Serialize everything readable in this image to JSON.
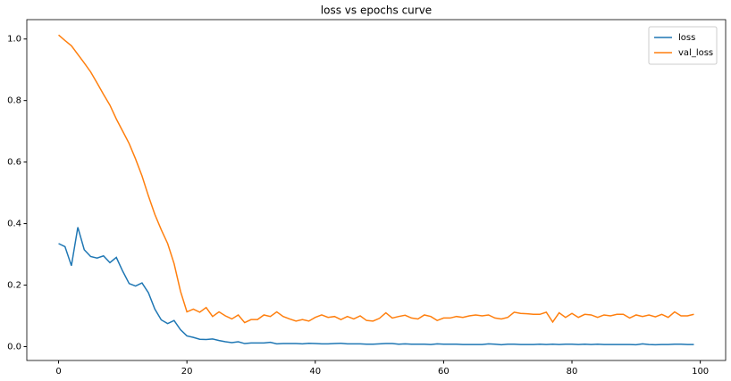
{
  "chart_data": {
    "type": "line",
    "title": "loss vs epochs curve",
    "x": [
      0,
      1,
      2,
      3,
      4,
      5,
      6,
      7,
      8,
      9,
      10,
      11,
      12,
      13,
      14,
      15,
      16,
      17,
      18,
      19,
      20,
      21,
      22,
      23,
      24,
      25,
      26,
      27,
      28,
      29,
      30,
      31,
      32,
      33,
      34,
      35,
      36,
      37,
      38,
      39,
      40,
      41,
      42,
      43,
      44,
      45,
      46,
      47,
      48,
      49,
      50,
      51,
      52,
      53,
      54,
      55,
      56,
      57,
      58,
      59,
      60,
      61,
      62,
      63,
      64,
      65,
      66,
      67,
      68,
      69,
      70,
      71,
      72,
      73,
      74,
      75,
      76,
      77,
      78,
      79,
      80,
      81,
      82,
      83,
      84,
      85,
      86,
      87,
      88,
      89,
      90,
      91,
      92,
      93,
      94,
      95,
      96,
      97,
      98,
      99
    ],
    "series": [
      {
        "name": "loss",
        "color": "#1f77b4",
        "values": [
          0.335,
          0.325,
          0.263,
          0.388,
          0.315,
          0.293,
          0.288,
          0.295,
          0.273,
          0.29,
          0.245,
          0.205,
          0.197,
          0.207,
          0.175,
          0.122,
          0.087,
          0.075,
          0.085,
          0.055,
          0.035,
          0.03,
          0.024,
          0.023,
          0.025,
          0.02,
          0.016,
          0.013,
          0.016,
          0.01,
          0.012,
          0.012,
          0.012,
          0.014,
          0.009,
          0.01,
          0.01,
          0.01,
          0.009,
          0.011,
          0.01,
          0.009,
          0.009,
          0.01,
          0.011,
          0.009,
          0.009,
          0.009,
          0.008,
          0.008,
          0.009,
          0.01,
          0.01,
          0.008,
          0.009,
          0.008,
          0.008,
          0.008,
          0.007,
          0.009,
          0.008,
          0.008,
          0.008,
          0.007,
          0.007,
          0.007,
          0.007,
          0.009,
          0.008,
          0.006,
          0.008,
          0.008,
          0.007,
          0.007,
          0.007,
          0.008,
          0.007,
          0.008,
          0.007,
          0.008,
          0.008,
          0.007,
          0.008,
          0.007,
          0.008,
          0.007,
          0.007,
          0.007,
          0.007,
          0.007,
          0.006,
          0.009,
          0.007,
          0.006,
          0.007,
          0.007,
          0.008,
          0.008,
          0.007,
          0.007
        ]
      },
      {
        "name": "val_loss",
        "color": "#ff7f0e",
        "values": [
          1.013,
          0.995,
          0.978,
          0.95,
          0.922,
          0.893,
          0.857,
          0.82,
          0.785,
          0.74,
          0.7,
          0.66,
          0.61,
          0.555,
          0.49,
          0.43,
          0.38,
          0.335,
          0.27,
          0.18,
          0.113,
          0.122,
          0.112,
          0.127,
          0.098,
          0.113,
          0.1,
          0.09,
          0.103,
          0.078,
          0.088,
          0.088,
          0.103,
          0.098,
          0.113,
          0.098,
          0.09,
          0.083,
          0.088,
          0.083,
          0.095,
          0.103,
          0.095,
          0.098,
          0.088,
          0.098,
          0.09,
          0.1,
          0.085,
          0.083,
          0.092,
          0.11,
          0.093,
          0.098,
          0.102,
          0.093,
          0.09,
          0.103,
          0.098,
          0.085,
          0.093,
          0.093,
          0.098,
          0.095,
          0.1,
          0.103,
          0.1,
          0.103,
          0.093,
          0.09,
          0.095,
          0.112,
          0.108,
          0.107,
          0.105,
          0.105,
          0.112,
          0.08,
          0.11,
          0.095,
          0.108,
          0.095,
          0.105,
          0.103,
          0.095,
          0.103,
          0.1,
          0.105,
          0.105,
          0.093,
          0.103,
          0.098,
          0.103,
          0.097,
          0.105,
          0.095,
          0.113,
          0.1,
          0.1,
          0.105
        ]
      }
    ],
    "xlim": [
      -4.95,
      103.95
    ],
    "xticks": [
      0,
      20,
      40,
      60,
      80,
      100
    ],
    "ylim": [
      -0.045,
      1.063
    ],
    "yticks": [
      {
        "value": 0,
        "label": "0.0"
      },
      {
        "value": 0.2,
        "label": "0.2"
      },
      {
        "value": 0.4,
        "label": "0.4"
      },
      {
        "value": 0.6,
        "label": "0.6"
      },
      {
        "value": 0.8,
        "label": "0.8"
      },
      {
        "value": 1,
        "label": "1.0"
      }
    ],
    "legend": "upper right"
  }
}
